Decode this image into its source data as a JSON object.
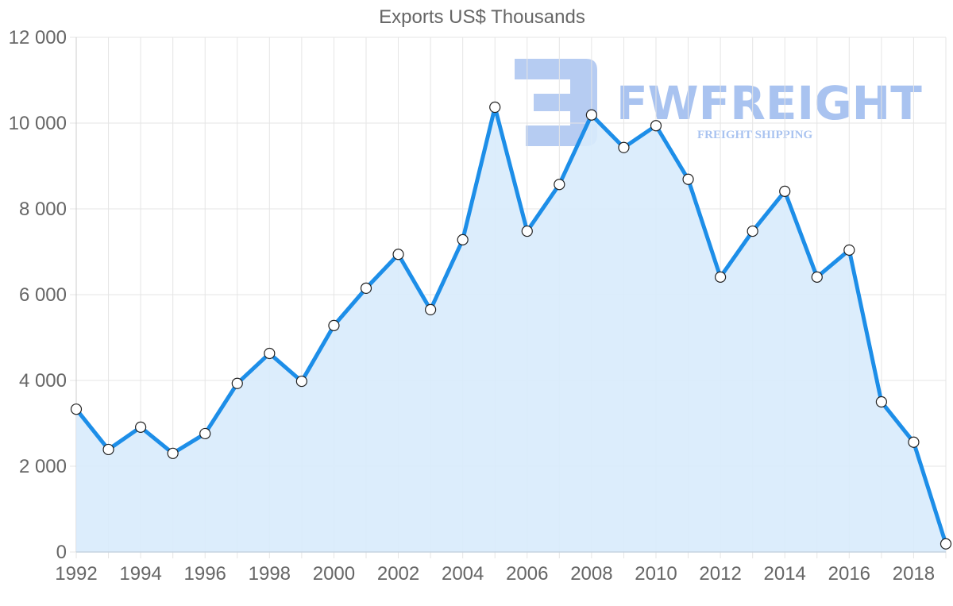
{
  "header": {
    "title": "Exports US$ Thousands"
  },
  "watermark": {
    "brand": "FWFREIGHT",
    "tagline": "FREIGHT SHIPPING",
    "color": "#a9c3f0"
  },
  "colors": {
    "line": "#1d8ee8",
    "fill": "#d8ebfc",
    "grid": "#e5e5e5",
    "axis_text": "#666666"
  },
  "chart_data": {
    "type": "area",
    "title": "Exports US$ Thousands",
    "xlabel": "",
    "ylabel": "",
    "ylim": [
      0,
      12000
    ],
    "yticks": [
      "0",
      "2 000",
      "4 000",
      "6 000",
      "8 000",
      "10 000",
      "12 000"
    ],
    "xticks": [
      "1992",
      "1994",
      "1996",
      "1998",
      "2000",
      "2002",
      "2004",
      "2006",
      "2008",
      "2010",
      "2012",
      "2014",
      "2016",
      "2018"
    ],
    "grid": true,
    "legend": "none",
    "x": [
      1992,
      1993,
      1994,
      1995,
      1996,
      1997,
      1998,
      1999,
      2000,
      2001,
      2002,
      2003,
      2004,
      2005,
      2006,
      2007,
      2008,
      2009,
      2010,
      2011,
      2012,
      2013,
      2014,
      2015,
      2016,
      2017,
      2018,
      2019
    ],
    "series": [
      {
        "name": "Exports US$ Thousands",
        "values": [
          3330,
          2390,
          2910,
          2300,
          2760,
          3930,
          4630,
          3980,
          5280,
          6150,
          6940,
          5650,
          7280,
          10370,
          7480,
          8570,
          10190,
          9430,
          9940,
          8690,
          6410,
          7480,
          8410,
          6410,
          7040,
          3500,
          2560,
          190
        ]
      }
    ]
  }
}
